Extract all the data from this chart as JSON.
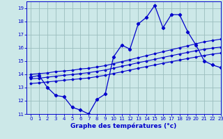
{
  "xlabel": "Graphe des températures (°c)",
  "xlim": [
    -0.5,
    23
  ],
  "ylim": [
    11,
    19.5
  ],
  "xticks": [
    0,
    1,
    2,
    3,
    4,
    5,
    6,
    7,
    8,
    9,
    10,
    11,
    12,
    13,
    14,
    15,
    16,
    17,
    18,
    19,
    20,
    21,
    22,
    23
  ],
  "yticks": [
    11,
    12,
    13,
    14,
    15,
    16,
    17,
    18,
    19
  ],
  "background_color": "#cce8e8",
  "grid_color": "#9abebe",
  "line_color": "#0000cc",
  "hours": [
    0,
    1,
    2,
    3,
    4,
    5,
    6,
    7,
    8,
    9,
    10,
    11,
    12,
    13,
    14,
    15,
    16,
    17,
    18,
    19,
    20,
    21,
    22,
    23
  ],
  "temp_actual": [
    13.8,
    13.9,
    13.0,
    12.4,
    12.3,
    11.5,
    11.3,
    11.0,
    12.1,
    12.5,
    15.3,
    16.2,
    15.9,
    17.8,
    18.3,
    19.2,
    17.5,
    18.5,
    18.5,
    17.2,
    16.2,
    15.0,
    14.7,
    14.5
  ],
  "trend_upper": [
    14.0,
    14.05,
    14.1,
    14.2,
    14.25,
    14.3,
    14.4,
    14.45,
    14.55,
    14.65,
    14.8,
    14.95,
    15.1,
    15.25,
    15.4,
    15.55,
    15.7,
    15.85,
    16.0,
    16.15,
    16.3,
    16.45,
    16.55,
    16.65
  ],
  "trend_mid": [
    13.65,
    13.7,
    13.78,
    13.85,
    13.92,
    13.98,
    14.05,
    14.12,
    14.22,
    14.32,
    14.46,
    14.6,
    14.73,
    14.87,
    15.0,
    15.13,
    15.27,
    15.4,
    15.53,
    15.65,
    15.78,
    15.88,
    15.98,
    16.05
  ],
  "trend_lower": [
    13.3,
    13.35,
    13.42,
    13.48,
    13.55,
    13.6,
    13.66,
    13.72,
    13.82,
    13.92,
    14.06,
    14.18,
    14.32,
    14.45,
    14.58,
    14.7,
    14.83,
    14.95,
    15.07,
    15.19,
    15.3,
    15.42,
    15.52,
    15.6
  ]
}
